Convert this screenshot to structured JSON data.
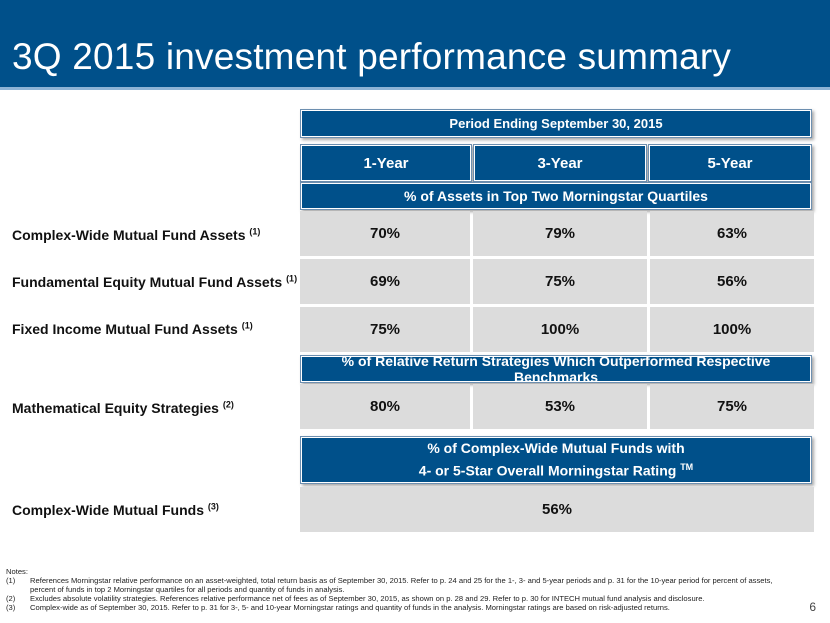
{
  "title": "3Q 2015 investment performance summary",
  "period_header": "Period Ending September 30, 2015",
  "columns": [
    "1-Year",
    "3-Year",
    "5-Year"
  ],
  "section_assets": "% of Assets in Top Two Morningstar Quartiles",
  "section_relative": "% of Relative Return Strategies Which Outperformed Respective Benchmarks",
  "section_funds_line1": "% of Complex-Wide Mutual Funds with",
  "section_funds_line2": "4- or 5-Star Overall Morningstar Rating",
  "section_funds_tm": "TM",
  "rows": [
    {
      "label": "Complex-Wide Mutual Fund Assets",
      "note": "(1)",
      "values": [
        "70%",
        "79%",
        "63%"
      ]
    },
    {
      "label": "Fundamental Equity Mutual Fund Assets",
      "note": "(1)",
      "values": [
        "69%",
        "75%",
        "56%"
      ]
    },
    {
      "label": "Fixed Income Mutual Fund Assets",
      "note": "(1)",
      "values": [
        "75%",
        "100%",
        "100%"
      ]
    },
    {
      "label": "Mathematical Equity Strategies",
      "note": "(2)",
      "values": [
        "80%",
        "53%",
        "75%"
      ]
    },
    {
      "label": "Complex-Wide Mutual Funds",
      "note": "(3)",
      "values": [
        "56%"
      ]
    }
  ],
  "notes_label": "Notes:",
  "notes": [
    {
      "num": "(1)",
      "text": "References Morningstar relative performance on an asset-weighted, total return basis as of September 30, 2015. Refer to p. 24 and 25 for the 1-, 3- and 5-year periods and p. 31 for the 10-year period for percent of assets, percent of funds in top 2 Morningstar quartiles for all periods and quantity of funds in analysis."
    },
    {
      "num": "(2)",
      "text": "Excludes absolute volatility strategies. References relative performance net of fees as of September 30, 2015, as shown on p. 28 and 29. Refer to p. 30 for INTECH mutual fund analysis and disclosure."
    },
    {
      "num": "(3)",
      "text": "Complex-wide as of September 30, 2015. Refer to p. 31 for 3-, 5- and 10-year Morningstar ratings and quantity of funds in the analysis. Morningstar ratings are based on risk-adjusted returns."
    }
  ],
  "page_number": "6"
}
